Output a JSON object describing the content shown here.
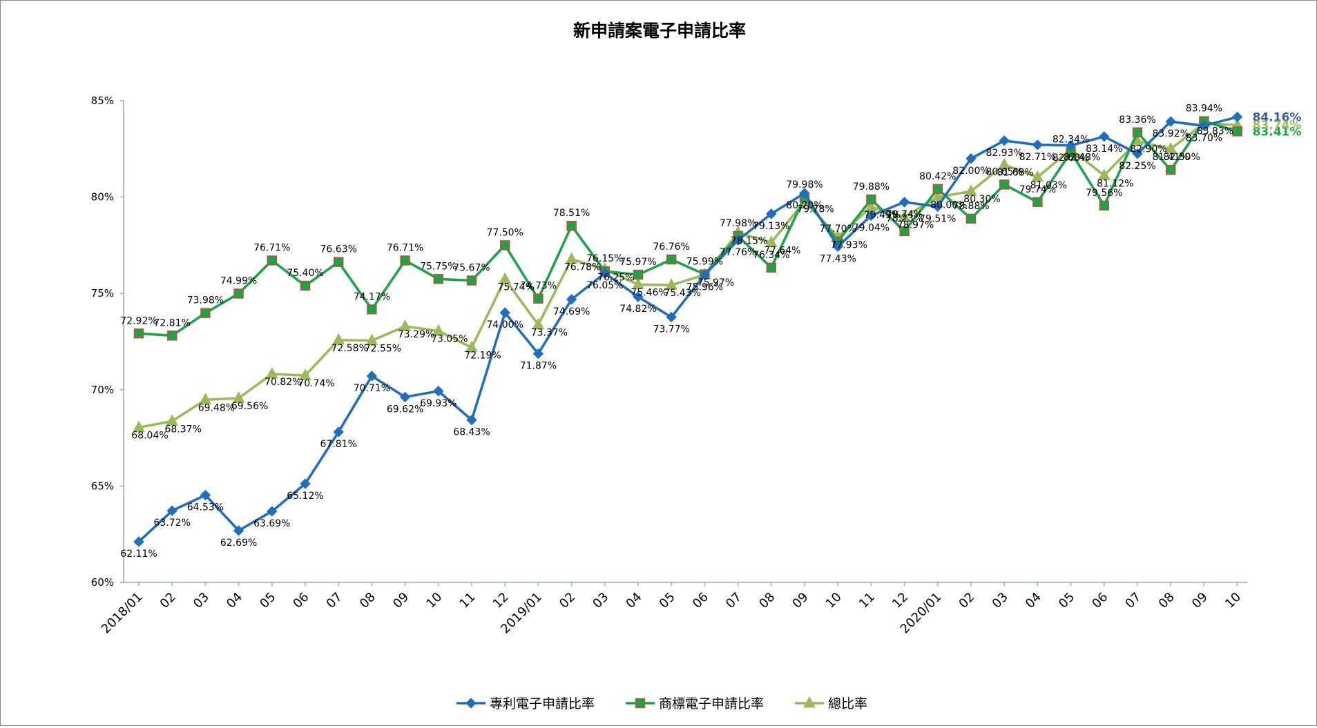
{
  "chart_data": {
    "type": "line",
    "title": "新申請案電子申請比率",
    "xlabel": "",
    "ylabel": "",
    "ylim": [
      60,
      85
    ],
    "yticks": [
      "60%",
      "65%",
      "70%",
      "75%",
      "80%",
      "85%"
    ],
    "grid": false,
    "legend_position": "bottom",
    "categories": [
      "2018/01",
      "02",
      "03",
      "04",
      "05",
      "06",
      "07",
      "08",
      "09",
      "10",
      "11",
      "12",
      "2019/01",
      "02",
      "03",
      "04",
      "05",
      "06",
      "07",
      "08",
      "09",
      "10",
      "11",
      "12",
      "2020/01",
      "02",
      "03",
      "04",
      "05",
      "06",
      "07",
      "08",
      "09",
      "10"
    ],
    "series": [
      {
        "name": "專利電子申請比率",
        "color": "#1f6fc0",
        "marker": "diamond",
        "values": [
          62.11,
          63.72,
          64.53,
          62.69,
          63.69,
          65.12,
          67.81,
          70.71,
          69.62,
          69.93,
          68.43,
          74.0,
          71.87,
          74.69,
          76.05,
          74.82,
          73.77,
          75.96,
          77.76,
          79.13,
          80.2,
          77.43,
          79.04,
          79.74,
          79.51,
          82.0,
          82.93,
          82.71,
          82.68,
          83.14,
          82.25,
          83.92,
          83.7,
          84.16
        ],
        "labels": [
          "62.11%",
          "63.72%",
          "64.53%",
          "62.69%",
          "63.69%",
          "65.12%",
          "67.81%",
          "70.71%",
          "69.62%",
          "69.93%",
          "68.43%",
          "74.00%",
          "71.87%",
          "74.69%",
          "76.05%",
          "74.82%",
          "73.77%",
          "75.96%",
          "77.76%",
          "79.13%",
          "80.20%",
          "77.43%",
          "79.04%",
          "79.74%",
          "79.51%",
          "82.00%",
          "82.93%",
          "82.71%",
          "82.68%",
          "83.14%",
          "82.25%",
          "83.92%",
          "83.70%",
          "84.16%"
        ]
      },
      {
        "name": "商標電子申請比率",
        "color": "#17a64a",
        "marker": "square",
        "values": [
          72.92,
          72.81,
          73.98,
          74.99,
          76.71,
          75.4,
          76.63,
          74.17,
          76.71,
          75.75,
          75.67,
          77.5,
          74.73,
          78.51,
          76.15,
          75.97,
          76.76,
          75.99,
          77.98,
          76.34,
          79.98,
          77.7,
          79.88,
          78.23,
          80.42,
          78.88,
          80.65,
          79.74,
          82.34,
          79.56,
          83.36,
          81.41,
          83.94,
          83.41
        ],
        "labels": [
          "72.92%",
          "72.81%",
          "73.98%",
          "74.99%",
          "76.71%",
          "75.40%",
          "76.63%",
          "74.17%",
          "76.71%",
          "75.75%",
          "75.67%",
          "77.50%",
          "74.73%",
          "78.51%",
          "76.15%",
          "75.97%",
          "76.76%",
          "75.99%",
          "77.98%",
          "76.34%",
          "79.98%",
          "77.70%",
          "79.88%",
          "78.23%",
          "80.42%",
          "78.88%",
          "80.65%",
          "79.74%",
          "82.34%",
          "79.56%",
          "83.36%",
          "81.41%",
          "83.94%",
          "83.41%"
        ]
      },
      {
        "name": "總比率",
        "color": "#9bbb59",
        "marker": "triangle",
        "values": [
          68.04,
          68.37,
          69.48,
          69.56,
          70.82,
          70.74,
          72.58,
          72.55,
          73.29,
          73.05,
          72.19,
          75.74,
          73.37,
          76.78,
          76.25,
          75.46,
          75.43,
          75.97,
          78.15,
          77.64,
          79.78,
          77.93,
          79.49,
          78.97,
          80.0,
          80.3,
          81.68,
          81.03,
          82.48,
          81.12,
          82.9,
          82.5,
          83.83,
          83.74
        ],
        "labels": [
          "68.04%",
          "68.37%",
          "69.48%",
          "69.56%",
          "70.82%",
          "70.74%",
          "72.58%",
          "72.55%",
          "73.29%",
          "73.05%",
          "72.19%",
          "75.74%",
          "73.37%",
          "76.78%",
          "76.25%",
          "75.46%",
          "75.43%",
          "75.97%",
          "78.15%",
          "77.64%",
          "79.78%",
          "77.93%",
          "79.49%",
          "78.97%",
          "80.00%",
          "80.30%",
          "81.68%",
          "81.03%",
          "82.48%",
          "81.12%",
          "82.90%",
          "82.50%",
          "83.83%",
          "83.74%"
        ]
      }
    ]
  }
}
